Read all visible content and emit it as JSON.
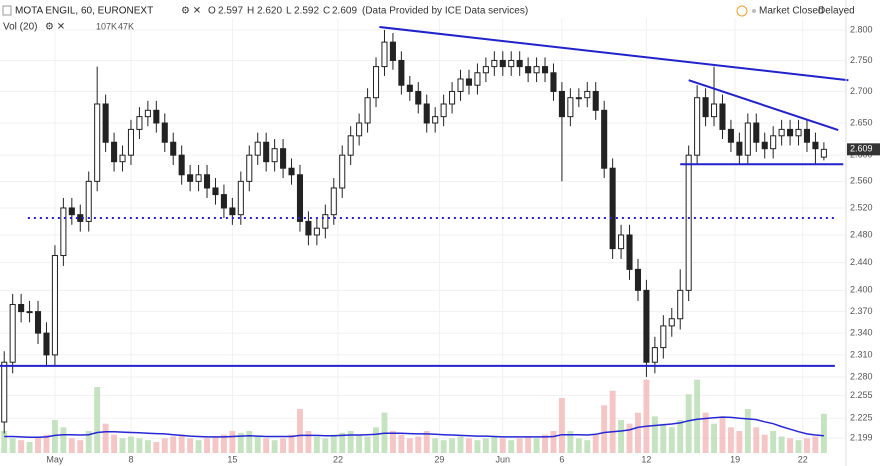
{
  "chart_data": {
    "type": "candlestick",
    "title": "MOTA ENGIL, 60, EURONEXT",
    "source": "(Data Provided by ICE Data services)",
    "status": "Market Closed",
    "delay": "Delayed",
    "legend": {
      "ohlc_names": [
        "O",
        "H",
        "L",
        "C"
      ],
      "ohlc_values": [
        "2.597",
        "2.620",
        "2.592",
        "2.609"
      ],
      "volume_name": "Vol (20)",
      "volume_values": [
        "107K",
        "47K"
      ]
    },
    "open": [
      2.22,
      2.3,
      2.38,
      2.37,
      2.37,
      2.34,
      2.31,
      2.45,
      2.52,
      2.51,
      2.5,
      2.56,
      2.68,
      2.62,
      2.59,
      2.6,
      2.64,
      2.66,
      2.67,
      2.65,
      2.62,
      2.6,
      2.57,
      2.56,
      2.57,
      2.55,
      2.54,
      2.52,
      2.51,
      2.56,
      2.6,
      2.62,
      2.59,
      2.61,
      2.58,
      2.57,
      2.5,
      2.48,
      2.49,
      2.51,
      2.55,
      2.6,
      2.63,
      2.65,
      2.69,
      2.74,
      2.78,
      2.75,
      2.71,
      2.7,
      2.68,
      2.65,
      2.66,
      2.68,
      2.7,
      2.72,
      2.71,
      2.73,
      2.74,
      2.75,
      2.74,
      2.75,
      2.74,
      2.73,
      2.74,
      2.73,
      2.7,
      2.66,
      2.69,
      2.69,
      2.7,
      2.67,
      2.58,
      2.46,
      2.48,
      2.43,
      2.4,
      2.3,
      2.32,
      2.35,
      2.36,
      2.4,
      2.6,
      2.69,
      2.66,
      2.68,
      2.64,
      2.62,
      2.6,
      2.65,
      2.62,
      2.61,
      2.63,
      2.64,
      2.63,
      2.64,
      2.62,
      2.597
    ],
    "high": [
      2.315,
      2.395,
      2.395,
      2.385,
      2.385,
      2.355,
      2.465,
      2.535,
      2.535,
      2.525,
      2.575,
      2.74,
      2.695,
      2.635,
      2.615,
      2.655,
      2.675,
      2.685,
      2.685,
      2.665,
      2.635,
      2.615,
      2.585,
      2.585,
      2.585,
      2.565,
      2.555,
      2.535,
      2.575,
      2.615,
      2.635,
      2.635,
      2.625,
      2.625,
      2.595,
      2.585,
      2.515,
      2.505,
      2.525,
      2.565,
      2.615,
      2.645,
      2.665,
      2.705,
      2.755,
      2.8,
      2.795,
      2.765,
      2.725,
      2.715,
      2.695,
      2.675,
      2.695,
      2.715,
      2.735,
      2.735,
      2.745,
      2.755,
      2.765,
      2.765,
      2.765,
      2.765,
      2.755,
      2.755,
      2.755,
      2.745,
      2.715,
      2.705,
      2.705,
      2.715,
      2.715,
      2.685,
      2.595,
      2.495,
      2.495,
      2.445,
      2.415,
      2.335,
      2.365,
      2.375,
      2.43,
      2.615,
      2.71,
      2.705,
      2.74,
      2.695,
      2.655,
      2.635,
      2.665,
      2.665,
      2.635,
      2.645,
      2.655,
      2.655,
      2.655,
      2.655,
      2.635,
      2.62
    ],
    "low": [
      2.205,
      2.285,
      2.355,
      2.355,
      2.325,
      2.295,
      2.295,
      2.435,
      2.495,
      2.485,
      2.485,
      2.545,
      2.605,
      2.575,
      2.575,
      2.585,
      2.625,
      2.645,
      2.635,
      2.605,
      2.585,
      2.555,
      2.545,
      2.545,
      2.535,
      2.525,
      2.505,
      2.495,
      2.495,
      2.545,
      2.585,
      2.575,
      2.575,
      2.565,
      2.555,
      2.485,
      2.465,
      2.465,
      2.475,
      2.495,
      2.535,
      2.585,
      2.615,
      2.635,
      2.675,
      2.725,
      2.735,
      2.695,
      2.685,
      2.665,
      2.635,
      2.635,
      2.645,
      2.665,
      2.685,
      2.695,
      2.695,
      2.715,
      2.725,
      2.725,
      2.725,
      2.725,
      2.715,
      2.715,
      2.715,
      2.685,
      2.56,
      2.645,
      2.675,
      2.675,
      2.655,
      2.565,
      2.445,
      2.445,
      2.415,
      2.385,
      2.28,
      2.285,
      2.305,
      2.335,
      2.345,
      2.385,
      2.585,
      2.645,
      2.645,
      2.625,
      2.605,
      2.585,
      2.585,
      2.605,
      2.595,
      2.595,
      2.615,
      2.615,
      2.615,
      2.605,
      2.585,
      2.592
    ],
    "close": [
      2.3,
      2.38,
      2.37,
      2.37,
      2.34,
      2.31,
      2.45,
      2.52,
      2.51,
      2.5,
      2.56,
      2.68,
      2.62,
      2.59,
      2.6,
      2.64,
      2.66,
      2.67,
      2.65,
      2.62,
      2.6,
      2.57,
      2.56,
      2.57,
      2.55,
      2.54,
      2.52,
      2.51,
      2.56,
      2.6,
      2.62,
      2.59,
      2.61,
      2.58,
      2.57,
      2.5,
      2.48,
      2.49,
      2.51,
      2.55,
      2.6,
      2.63,
      2.65,
      2.69,
      2.74,
      2.78,
      2.75,
      2.71,
      2.7,
      2.68,
      2.65,
      2.66,
      2.68,
      2.7,
      2.72,
      2.71,
      2.73,
      2.74,
      2.75,
      2.74,
      2.75,
      2.74,
      2.73,
      2.74,
      2.73,
      2.7,
      2.66,
      2.69,
      2.69,
      2.7,
      2.67,
      2.58,
      2.46,
      2.48,
      2.43,
      2.4,
      2.3,
      2.32,
      2.35,
      2.36,
      2.4,
      2.6,
      2.69,
      2.66,
      2.68,
      2.64,
      2.62,
      2.6,
      2.65,
      2.62,
      2.61,
      2.63,
      2.64,
      2.63,
      2.64,
      2.62,
      2.61,
      2.609
    ],
    "volume": [
      60,
      40,
      35,
      30,
      45,
      50,
      90,
      70,
      40,
      35,
      60,
      180,
      80,
      50,
      40,
      45,
      40,
      35,
      30,
      40,
      45,
      50,
      40,
      35,
      40,
      45,
      50,
      60,
      55,
      60,
      45,
      40,
      35,
      40,
      50,
      120,
      60,
      45,
      40,
      50,
      55,
      60,
      50,
      45,
      70,
      110,
      60,
      50,
      40,
      45,
      60,
      40,
      35,
      40,
      45,
      40,
      35,
      40,
      45,
      40,
      35,
      40,
      45,
      40,
      50,
      60,
      150,
      60,
      40,
      35,
      50,
      130,
      170,
      90,
      80,
      110,
      200,
      100,
      80,
      70,
      90,
      160,
      200,
      110,
      80,
      100,
      70,
      60,
      120,
      70,
      50,
      60,
      45,
      40,
      35,
      40,
      45,
      107
    ],
    "volume_ma": [
      45,
      45,
      44,
      43,
      43,
      44,
      48,
      50,
      50,
      49,
      50,
      56,
      58,
      58,
      57,
      56,
      55,
      54,
      53,
      52,
      50,
      48,
      46,
      45,
      44,
      44,
      44,
      45,
      46,
      47,
      46,
      45,
      45,
      45,
      45,
      48,
      48,
      48,
      47,
      47,
      48,
      49,
      49,
      50,
      51,
      54,
      54,
      54,
      53,
      52,
      52,
      51,
      50,
      49,
      48,
      47,
      46,
      46,
      45,
      44,
      44,
      44,
      44,
      44,
      44,
      45,
      50,
      50,
      50,
      49,
      51,
      56,
      58,
      60,
      63,
      70,
      73,
      75,
      77,
      79,
      82,
      88,
      92,
      94,
      96,
      98,
      97,
      95,
      93,
      91,
      85,
      80,
      72,
      65,
      58,
      52,
      49,
      47
    ],
    "volume_lim": [
      0,
      300
    ],
    "up_color": "#ffffff",
    "down_color": "#222222",
    "volume_up_color": "#b7dcb0",
    "volume_down_color": "#f2b8b8",
    "volume_ma_color": "#2727d6",
    "xlim": [
      -0.5,
      99.5
    ],
    "xticks": [
      {
        "value": 6,
        "label": "May"
      },
      {
        "value": 15,
        "label": "8"
      },
      {
        "value": 27,
        "label": "15"
      },
      {
        "value": 39.5,
        "label": "22"
      },
      {
        "value": 51.5,
        "label": "29"
      },
      {
        "value": 59,
        "label": "Jun"
      },
      {
        "value": 66,
        "label": "6"
      },
      {
        "value": 76,
        "label": "12"
      },
      {
        "value": 86.5,
        "label": "19"
      },
      {
        "value": 94.5,
        "label": "22"
      }
    ],
    "ylim": [
      2.19,
      2.82
    ],
    "log_scale": true,
    "yticks": [
      {
        "value": 2.8,
        "label": "2.800"
      },
      {
        "value": 2.75,
        "label": "2.750"
      },
      {
        "value": 2.7,
        "label": "2.700"
      },
      {
        "value": 2.65,
        "label": "2.650"
      },
      {
        "value": 2.6,
        "label": "2.600"
      },
      {
        "value": 2.56,
        "label": "2.560"
      },
      {
        "value": 2.52,
        "label": "2.520"
      },
      {
        "value": 2.48,
        "label": "2.480"
      },
      {
        "value": 2.44,
        "label": "2.440"
      },
      {
        "value": 2.4,
        "label": "2.400"
      },
      {
        "value": 2.37,
        "label": "2.370"
      },
      {
        "value": 2.34,
        "label": "2.340"
      },
      {
        "value": 2.31,
        "label": "2.310"
      },
      {
        "value": 2.28,
        "label": "2.280"
      },
      2.255,
      2.225,
      2.199
    ],
    "grid": true,
    "trendline_color": "#2222cc",
    "trendlines": [
      {
        "x": [
          44.4,
          99.9
        ],
        "y": [
          2.805,
          2.718
        ],
        "dashed": false
      },
      {
        "x": [
          81,
          98.7
        ],
        "y": [
          2.718,
          2.639
        ],
        "dashed": false
      },
      {
        "x": [
          80,
          99.3
        ],
        "y": [
          2.586,
          2.586
        ],
        "dashed": false
      },
      {
        "x": [
          2.8,
          98.3
        ],
        "y": [
          2.505,
          2.505
        ],
        "dashed": true
      },
      {
        "x": [
          -0.5,
          98.3
        ],
        "y": [
          2.295,
          2.295
        ],
        "dashed": false
      }
    ]
  }
}
